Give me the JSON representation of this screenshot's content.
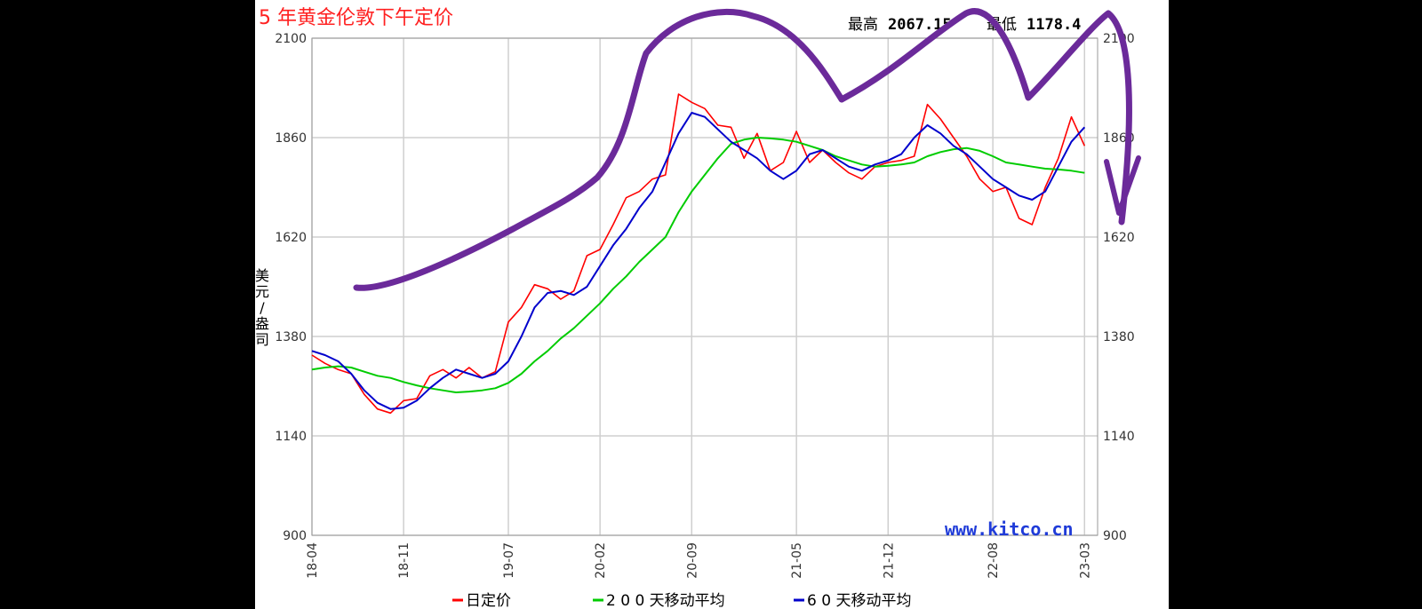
{
  "chart_data": {
    "type": "line",
    "title": "5 年黄金伦敦下午定价",
    "stats": {
      "high_label": "最高",
      "high_value": "2067.15",
      "low_label": "最低",
      "low_value": "1178.4"
    },
    "ylabel": "美元/盎司",
    "ylim": [
      900,
      2100
    ],
    "yticks": [
      900,
      1140,
      1380,
      1620,
      1860,
      2100
    ],
    "xticks": [
      "18-04",
      "18-11",
      "19-07",
      "20-02",
      "20-09",
      "21-05",
      "21-12",
      "22-08",
      "23-03"
    ],
    "xtick_pos": [
      0,
      7,
      15,
      22,
      29,
      37,
      44,
      52,
      59
    ],
    "watermark": "www.kitco.cn",
    "grid": true,
    "legend_position": "bottom",
    "series": [
      {
        "name": "日定价",
        "color": "#ff0000",
        "x": [
          0,
          1,
          2,
          3,
          4,
          5,
          6,
          7,
          8,
          9,
          10,
          11,
          12,
          13,
          14,
          15,
          16,
          17,
          18,
          19,
          20,
          21,
          22,
          23,
          24,
          25,
          26,
          27,
          28,
          29,
          30,
          31,
          32,
          33,
          34,
          35,
          36,
          37,
          38,
          39,
          40,
          41,
          42,
          43,
          44,
          45,
          46,
          47,
          48,
          49,
          50,
          51,
          52,
          53,
          54,
          55,
          56,
          57,
          58,
          59
        ],
        "values": [
          1335,
          1315,
          1300,
          1290,
          1240,
          1205,
          1195,
          1225,
          1230,
          1285,
          1300,
          1280,
          1305,
          1280,
          1295,
          1415,
          1450,
          1505,
          1495,
          1470,
          1490,
          1575,
          1590,
          1650,
          1715,
          1730,
          1760,
          1770,
          1965,
          1945,
          1930,
          1890,
          1885,
          1810,
          1870,
          1780,
          1800,
          1875,
          1800,
          1830,
          1800,
          1775,
          1760,
          1790,
          1800,
          1805,
          1815,
          1940,
          1905,
          1860,
          1815,
          1760,
          1730,
          1740,
          1665,
          1650,
          1740,
          1810,
          1910,
          1840
        ]
      },
      {
        "name": "2 0 0 天移动平均",
        "color": "#00cc00",
        "x": [
          0,
          1,
          2,
          3,
          4,
          5,
          6,
          7,
          8,
          9,
          10,
          11,
          12,
          13,
          14,
          15,
          16,
          17,
          18,
          19,
          20,
          21,
          22,
          23,
          24,
          25,
          26,
          27,
          28,
          29,
          30,
          31,
          32,
          33,
          34,
          35,
          36,
          37,
          38,
          39,
          40,
          41,
          42,
          43,
          44,
          45,
          46,
          47,
          48,
          49,
          50,
          51,
          52,
          53,
          54,
          55,
          56,
          57,
          58,
          59
        ],
        "values": [
          1300,
          1305,
          1308,
          1305,
          1295,
          1285,
          1280,
          1270,
          1262,
          1255,
          1250,
          1245,
          1247,
          1250,
          1255,
          1268,
          1290,
          1320,
          1345,
          1375,
          1400,
          1430,
          1460,
          1495,
          1525,
          1560,
          1590,
          1620,
          1680,
          1730,
          1770,
          1810,
          1845,
          1855,
          1860,
          1858,
          1855,
          1850,
          1840,
          1830,
          1815,
          1805,
          1795,
          1790,
          1792,
          1795,
          1800,
          1815,
          1825,
          1832,
          1835,
          1828,
          1815,
          1800,
          1795,
          1790,
          1785,
          1783,
          1780,
          1775
        ]
      },
      {
        "name": "6 0 天移动平均",
        "color": "#0000cc",
        "x": [
          0,
          1,
          2,
          3,
          4,
          5,
          6,
          7,
          8,
          9,
          10,
          11,
          12,
          13,
          14,
          15,
          16,
          17,
          18,
          19,
          20,
          21,
          22,
          23,
          24,
          25,
          26,
          27,
          28,
          29,
          30,
          31,
          32,
          33,
          34,
          35,
          36,
          37,
          38,
          39,
          40,
          41,
          42,
          43,
          44,
          45,
          46,
          47,
          48,
          49,
          50,
          51,
          52,
          53,
          54,
          55,
          56,
          57,
          58,
          59
        ],
        "values": [
          1345,
          1335,
          1320,
          1290,
          1250,
          1220,
          1205,
          1208,
          1225,
          1255,
          1280,
          1300,
          1290,
          1280,
          1290,
          1320,
          1380,
          1450,
          1485,
          1490,
          1480,
          1500,
          1550,
          1600,
          1640,
          1690,
          1730,
          1800,
          1870,
          1920,
          1910,
          1880,
          1850,
          1830,
          1810,
          1780,
          1760,
          1780,
          1820,
          1830,
          1810,
          1790,
          1780,
          1795,
          1805,
          1820,
          1860,
          1890,
          1870,
          1840,
          1820,
          1790,
          1760,
          1740,
          1720,
          1710,
          1730,
          1790,
          1850,
          1885
        ]
      }
    ]
  }
}
